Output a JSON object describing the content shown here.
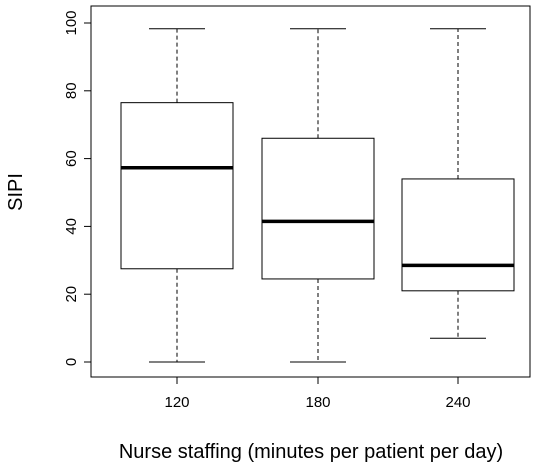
{
  "chart_data": {
    "type": "boxplot",
    "title": "",
    "xlabel": "Nurse staffing (minutes per patient per day)",
    "ylabel": "SIPI",
    "ylim": [
      0,
      100
    ],
    "yticks": [
      0,
      20,
      40,
      60,
      80,
      100
    ],
    "categories": [
      "120",
      "180",
      "240"
    ],
    "boxes": [
      {
        "category": "120",
        "whisker_low": 0,
        "q1": 27.5,
        "median": 57.3,
        "q3": 76.5,
        "whisker_high": 98.3
      },
      {
        "category": "180",
        "whisker_low": 0,
        "q1": 24.5,
        "median": 41.5,
        "q3": 66.0,
        "whisker_high": 98.3
      },
      {
        "category": "240",
        "whisker_low": 7.0,
        "q1": 21.0,
        "median": 28.5,
        "q3": 54.0,
        "whisker_high": 98.3
      }
    ],
    "grid": false,
    "legend": "none"
  }
}
